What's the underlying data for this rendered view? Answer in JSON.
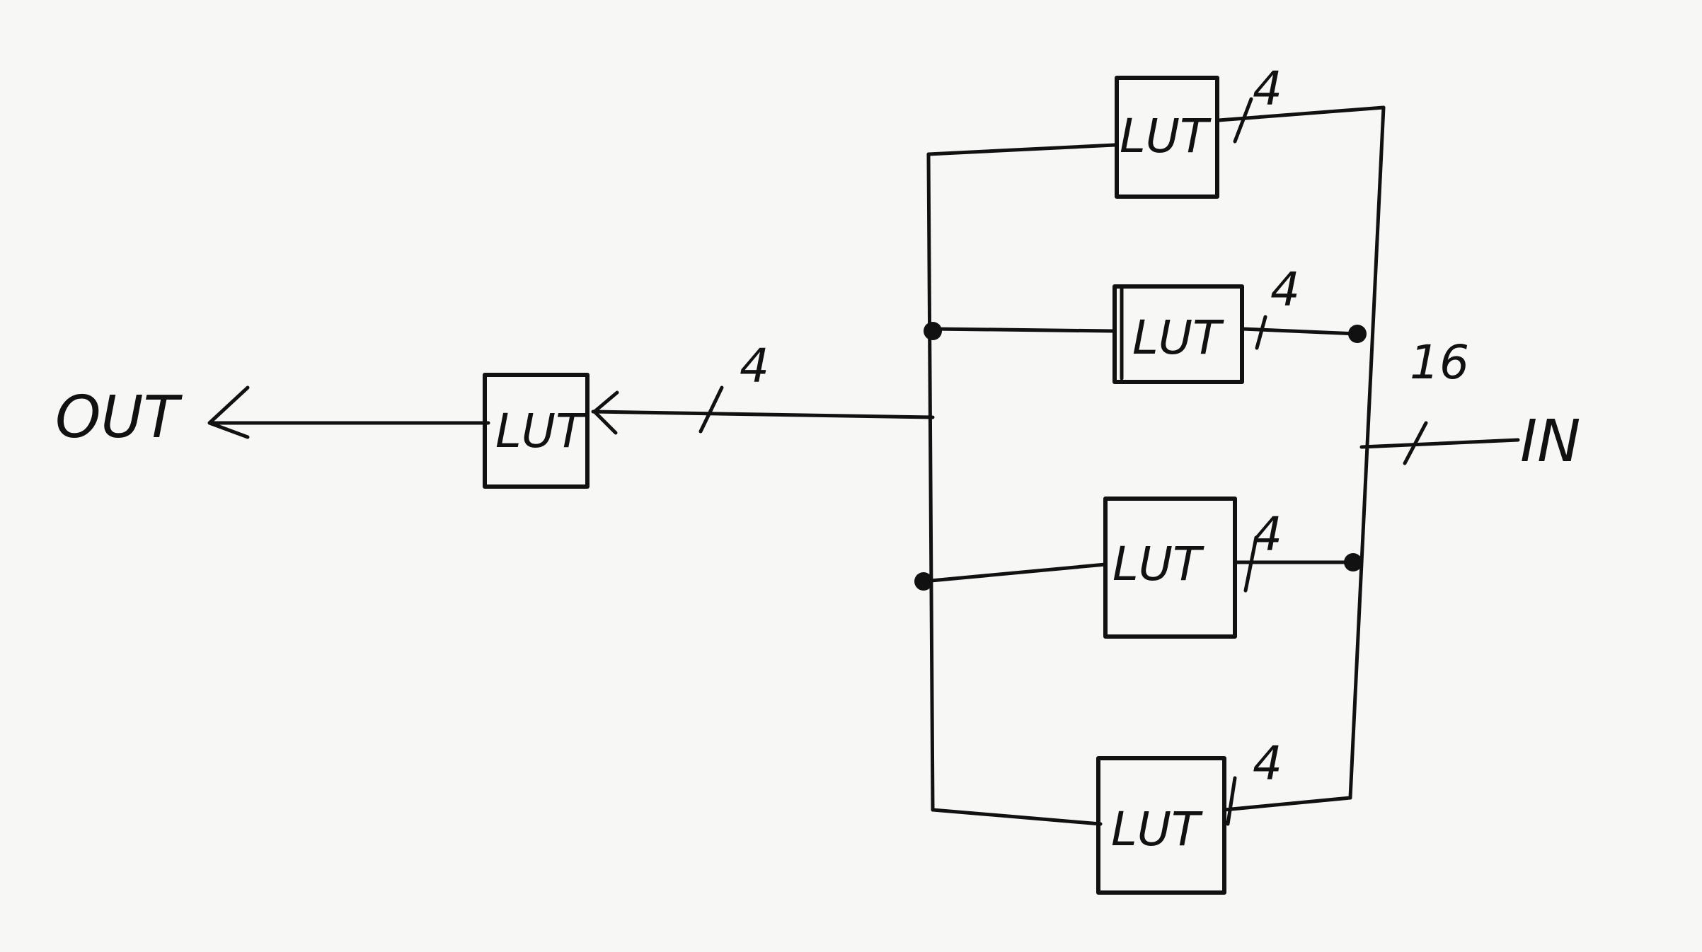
{
  "labels": {
    "out": "OUT",
    "in": "IN"
  },
  "blocks": {
    "output_lut": "LUT",
    "lut_1": "LUT",
    "lut_2": "LUT",
    "lut_3": "LUT",
    "lut_4": "LUT"
  },
  "bus_widths": {
    "input": "16",
    "output_lut_in": "4",
    "lut_1_in": "4",
    "lut_2_in": "4",
    "lut_3_in": "4",
    "lut_4_in": "4"
  }
}
